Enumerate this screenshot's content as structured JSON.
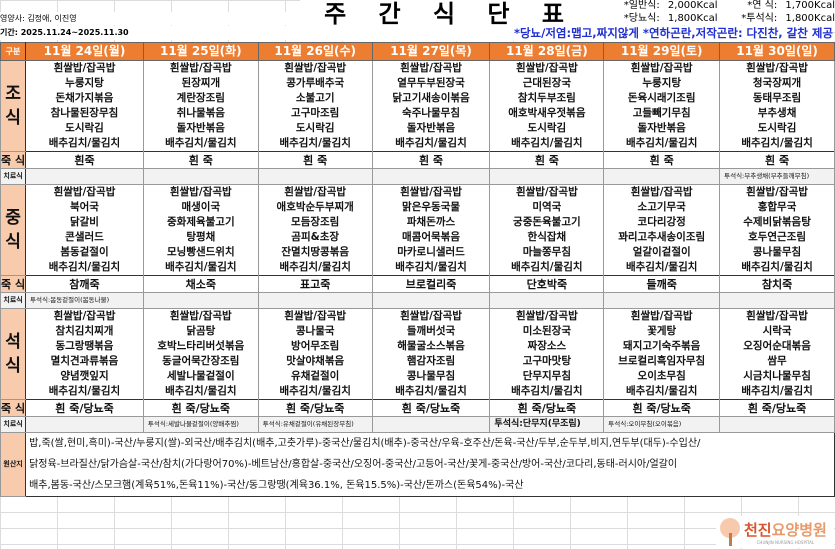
{
  "title": "주 간 식 단 표",
  "dietitian": "영양사: 김정애, 이진영",
  "period": "기간: 2025.11.24~2025.11.30",
  "calories": [
    {
      "label": "*일반식:",
      "value": "2,000Kcal",
      "label2": "*연   식:",
      "value2": "1,700Kcal"
    },
    {
      "label": "*당뇨식:",
      "value": "1,800Kcal",
      "label2": "*투석식:",
      "value2": "1,800Kcal"
    }
  ],
  "note": "*당뇨/저염:맵고,짜지않게  *연하곤란,저작곤란: 다진찬, 갈찬 제공",
  "header_label": "구분",
  "days": [
    "11월 24일(월)",
    "11월 25일(화)",
    "11월 26일(수)",
    "11월 27일(목)",
    "11월 28일(금)",
    "11월 29일(토)",
    "11월 30일(일)"
  ],
  "porridge_label": "죽 식",
  "therapy_label": "치료식",
  "meals": [
    {
      "label": "조\n식",
      "dishes": [
        [
          "흰쌀밥/잡곡밥",
          "누룽지탕",
          "돈채가지볶음",
          "참나물된장무침",
          "도시락김",
          "배추김치/물김치"
        ],
        [
          "흰쌀밥/잡곡밥",
          "된장찌개",
          "계란장조림",
          "취나물볶음",
          "돌자반볶음",
          "배추김치/물김치"
        ],
        [
          "흰쌀밥/잡곡밥",
          "콩가루배추국",
          "소불고기",
          "고구마조림",
          "도시락김",
          "배추김치/물김치"
        ],
        [
          "흰쌀밥/잡곡밥",
          "열무두부된장국",
          "닭고기새송이볶음",
          "숙주나물무침",
          "돌자반볶음",
          "배추김치/물김치"
        ],
        [
          "흰쌀밥/잡곡밥",
          "근대된장국",
          "참치두부조림",
          "애호박새우젓볶음",
          "도시락김",
          "배추김치/물김치"
        ],
        [
          "흰쌀밥/잡곡밥",
          "누룽지탕",
          "돈육시래기조림",
          "고들빼기무침",
          "돌자반볶음",
          "배추김치/물김치"
        ],
        [
          "흰쌀밥/잡곡밥",
          "청국장찌개",
          "동태무조림",
          "부추생채",
          "도시락김",
          "배추김치/물김치"
        ]
      ],
      "porridge": [
        "흰죽",
        "흰 죽",
        "흰 죽",
        "흰 죽",
        "흰 죽",
        "흰 죽",
        "흰 죽"
      ],
      "therapy": [
        "",
        "",
        "",
        "",
        "",
        "",
        "투석식:부추생채(부추들깨무침)"
      ]
    },
    {
      "label": "중\n식",
      "dishes": [
        [
          "흰쌀밥/잡곡밥",
          "북어국",
          "닭갈비",
          "콘샐러드",
          "봄동겉절이",
          "배추김치/물김치"
        ],
        [
          "흰쌀밥/잡곡밥",
          "매생이국",
          "중화제육불고기",
          "탕평채",
          "모닝빵샌드위치",
          "배추김치/물김치"
        ],
        [
          "흰쌀밥/잡곡밥",
          "애호박순두부찌개",
          "모듬장조림",
          "곰피&초장",
          "잔멸치땅콩볶음",
          "배추김치/물김치"
        ],
        [
          "흰쌀밥/잡곡밥",
          "맑은우동국물",
          "파채돈까스",
          "매콤어묵볶음",
          "마카로니샐러드",
          "배추김치/물김치"
        ],
        [
          "흰쌀밥/잡곡밥",
          "미역국",
          "궁중돈육불고기",
          "한식잡채",
          "마늘쫑무침",
          "배추김치/물김치"
        ],
        [
          "흰쌀밥/잡곡밥",
          "소고기무국",
          "코다리강정",
          "꽈리고추새송이조림",
          "얼갈이겉절이",
          "배추김치/물김치"
        ],
        [
          "흰쌀밥/잡곡밥",
          "홍합무국",
          "수제비닭볶음탕",
          "호두연근조림",
          "콩나물무침",
          "배추김치/물김치"
        ]
      ],
      "porridge": [
        "참깨죽",
        "채소죽",
        "표고죽",
        "브로컬리죽",
        "단호박죽",
        "들깨죽",
        "참치죽"
      ],
      "therapy": [
        "투석식:봄동겉절이(봄동나물)",
        "",
        "",
        "",
        "",
        "",
        ""
      ]
    },
    {
      "label": "석\n식",
      "dishes": [
        [
          "흰쌀밥/잡곡밥",
          "참치김치찌개",
          "동그랑땡볶음",
          "멸치견과류볶음",
          "양념깻잎지",
          "배추김치/물김치"
        ],
        [
          "흰쌀밥/잡곡밥",
          "닭곰탕",
          "호박느타리버섯볶음",
          "동글어묵간장조림",
          "세발나물겉절이",
          "배추김치/물김치"
        ],
        [
          "흰쌀밥/잡곡밥",
          "콩나물국",
          "방어무조림",
          "맛살야채볶음",
          "유채겉절이",
          "배추김치/물김치"
        ],
        [
          "흰쌀밥/잡곡밥",
          "들깨버섯국",
          "해물굴소스볶음",
          "햄감자조림",
          "콩나물무침",
          "배추김치/물김치"
        ],
        [
          "흰쌀밥/잡곡밥",
          "미소된장국",
          "짜장소스",
          "고구마맛탕",
          "단무지무침",
          "배추김치/물김치"
        ],
        [
          "흰쌀밥/잡곡밥",
          "꽃게탕",
          "돼지고기숙주볶음",
          "브로컬리흑임자무침",
          "오이초무침",
          "배추김치/물김치"
        ],
        [
          "흰쌀밥/잡곡밥",
          "시락국",
          "오징어순대볶음",
          "쌈무",
          "시금치나물무침",
          "배추김치/물김치"
        ]
      ],
      "porridge": [
        "흰 죽/당뇨죽",
        "흰 죽/당뇨죽",
        "흰 죽/당뇨죽",
        "흰 죽/당뇨죽",
        "흰 죽/당뇨죽",
        "흰 죽/당뇨죽",
        "흰 죽/당뇨죽"
      ],
      "therapy": [
        "",
        "투석식:세발나물겉절이(양배추찜)",
        "투석식:유채겉절이(유채된장무침)",
        "",
        "투석식:단무지(무조림)",
        "투석식:오이무침(오이볶음)",
        ""
      ]
    }
  ],
  "origin_label": "원산지",
  "origin_lines": [
    "밥,죽(쌀,현미,흑미)-국산/누룽지(쌀)-외국산/배추김치(배추,고춧가루)-중국산/물김치(배추)-중국산/우육-호주산/돈육-국산/두부,순두부,비지,연두부(대두)-수입산/",
    "닭정육-브라질산/닭가슴살-국산/참치(가다랑어70%)-베트남산/홍합살-중국산/오징어-중국산/고등어-국산/꽃게-중국산/방어-국산/코다리,동태-러시아/얼갈이",
    "배추,봄동-국산/스모크햄(계육51%,돈육11%)-국산/동그랑땡(계육36.1%, 돈육15.5%)-국산/돈까스(돈육54%)-국산"
  ],
  "logo": {
    "name": "천진요양병원",
    "sub": "CHUNJIN NURSING HOSPITAL"
  },
  "colors": {
    "header": "#ed7d31",
    "label": "#f8cbad",
    "therapy_row": "#f2f2f2",
    "note": "#1f2fd0"
  }
}
